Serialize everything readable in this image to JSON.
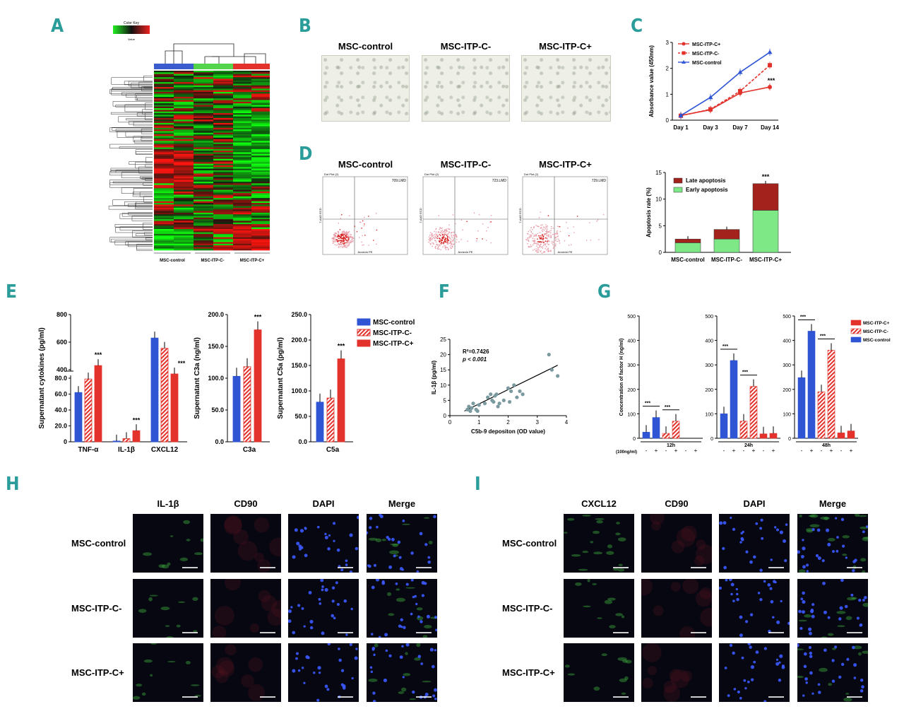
{
  "panels": {
    "A": "A",
    "B": "B",
    "C": "C",
    "D": "D",
    "E": "E",
    "F": "F",
    "G": "G",
    "H": "H",
    "I": "I"
  },
  "heatmap": {
    "color_key_title": "Color Key",
    "color_key_axis": "Value",
    "groups": [
      "MSC-control",
      "MSC-ITP-C-",
      "MSC-ITP-C+"
    ],
    "group_colors": [
      "#3b5ccc",
      "#54d44a",
      "#e2322b"
    ]
  },
  "microscopy": {
    "titles": [
      "MSC-control",
      "MSC-ITP-C-",
      "MSC-ITP-C+"
    ]
  },
  "flow": {
    "titles": [
      "MSC-control",
      "MSC-ITP-C-",
      "MSC-ITP-C+"
    ],
    "plot_header": "Dot Plot (2)",
    "gate_labels": [
      "709.LMD",
      "723.LMD",
      "729.LMD"
    ],
    "x_axis": "Annexin PE",
    "y_axis": "7-AAD ECD"
  },
  "chart_data": [
    {
      "id": "C",
      "type": "line",
      "categories": [
        "Day 1",
        "Day 3",
        "Day 7",
        "Day 14"
      ],
      "ylabel": "Absorbance value (450nm)",
      "ylim": [
        0,
        3
      ],
      "yticks": [
        "0",
        "1",
        "2",
        "3"
      ],
      "series": [
        {
          "name": "MSC-ITP-C+",
          "color": "#e2322b",
          "values": [
            0.18,
            0.4,
            1.05,
            1.28
          ],
          "style": "solid",
          "marker": "circle"
        },
        {
          "name": "MSC-ITP-C-",
          "color": "#e2322b",
          "values": [
            0.17,
            0.42,
            1.12,
            2.12
          ],
          "style": "dashed",
          "marker": "square"
        },
        {
          "name": "MSC-control",
          "color": "#2f55d4",
          "values": [
            0.18,
            0.88,
            1.85,
            2.62
          ],
          "style": "solid",
          "marker": "triangle"
        }
      ],
      "annotation": "***"
    },
    {
      "id": "D-bar",
      "type": "bar",
      "categories": [
        "MSC-control",
        "MSC-ITP-C-",
        "MSC-ITP-C+"
      ],
      "ylabel": "Apoptosis rate (%)",
      "ylim": [
        0,
        15
      ],
      "yticks": [
        "0",
        "5",
        "10",
        "15"
      ],
      "series": [
        {
          "name": "Early apoptosis",
          "color": "#7ee887",
          "values": [
            1.8,
            2.5,
            7.9
          ]
        },
        {
          "name": "Late apoptosis",
          "color": "#a3221c",
          "values": [
            0.7,
            1.8,
            5.0
          ]
        }
      ],
      "annotation": "***"
    },
    {
      "id": "E1",
      "type": "bar",
      "categories": [
        "TNF-α",
        "IL-1β",
        "CXCL12"
      ],
      "ylabel": "Supernatant cytokines (pg/ml)",
      "yticks": [
        "0",
        "20.0",
        "40.0",
        "60.0",
        "80.0",
        "400",
        "600",
        "800"
      ],
      "series": [
        {
          "name": "MSC-control",
          "values": [
            62,
            1,
            630
          ]
        },
        {
          "name": "MSC-ITP-C-",
          "values": [
            79,
            4,
            555
          ]
        },
        {
          "name": "MSC-ITP-C+",
          "values": [
            430,
            14,
            395
          ]
        }
      ],
      "annotations": [
        "***",
        "***",
        "***"
      ]
    },
    {
      "id": "E2",
      "type": "bar",
      "categories": [
        "C3a"
      ],
      "ylabel": "Supernatant C3a (ng/ml)",
      "ylim": [
        0,
        200
      ],
      "yticks": [
        "0.0",
        "50.0",
        "100.0",
        "150.0",
        "200.0"
      ],
      "series": [
        {
          "name": "MSC-control",
          "values": [
            103
          ]
        },
        {
          "name": "MSC-ITP-C-",
          "values": [
            118
          ]
        },
        {
          "name": "MSC-ITP-C+",
          "values": [
            176
          ]
        }
      ],
      "annotation": "***"
    },
    {
      "id": "E3",
      "type": "bar",
      "categories": [
        "C5a"
      ],
      "ylabel": "Supernatant C5a (pg/ml)",
      "ylim": [
        0,
        250
      ],
      "yticks": [
        "0.0",
        "50.0",
        "100.0",
        "150.0",
        "200.0",
        "250.0"
      ],
      "series": [
        {
          "name": "MSC-control",
          "values": [
            78
          ]
        },
        {
          "name": "MSC-ITP-C-",
          "values": [
            86
          ]
        },
        {
          "name": "MSC-ITP-C+",
          "values": [
            163
          ]
        }
      ],
      "annotation": "***",
      "legend": [
        "MSC-control",
        "MSC-ITP-C-",
        "MSC-ITP-C+"
      ]
    },
    {
      "id": "F",
      "type": "scatter",
      "xlabel": "C5b-9 depositon (OD value)",
      "ylabel": "IL-1β (pg/ml)",
      "xlim": [
        0,
        4
      ],
      "ylim": [
        0,
        25
      ],
      "xticks": [
        "0",
        "1",
        "2",
        "3",
        "4"
      ],
      "yticks": [
        "0",
        "5",
        "10",
        "15",
        "20",
        "25"
      ],
      "annotation_r2": "R²=0.7426",
      "annotation_p": "p < 0.001",
      "points": [
        [
          0.6,
          2
        ],
        [
          0.65,
          3
        ],
        [
          0.7,
          1.5
        ],
        [
          0.75,
          2.5
        ],
        [
          0.8,
          4
        ],
        [
          0.9,
          2
        ],
        [
          0.95,
          1.5
        ],
        [
          1.0,
          3.5
        ],
        [
          1.3,
          6
        ],
        [
          1.4,
          7
        ],
        [
          1.45,
          5
        ],
        [
          1.5,
          4.5
        ],
        [
          1.55,
          6.5
        ],
        [
          1.6,
          7
        ],
        [
          1.65,
          3
        ],
        [
          1.7,
          4
        ],
        [
          1.85,
          5
        ],
        [
          2.0,
          9
        ],
        [
          2.1,
          8
        ],
        [
          2.2,
          10
        ],
        [
          2.3,
          6
        ],
        [
          2.4,
          8
        ],
        [
          2.5,
          7
        ],
        [
          3.4,
          20
        ],
        [
          3.5,
          15
        ],
        [
          3.7,
          13
        ],
        [
          1.2,
          4
        ],
        [
          2.05,
          4.5
        ]
      ],
      "fit": [
        [
          0.5,
          1.5
        ],
        [
          3.7,
          16.5
        ]
      ]
    },
    {
      "id": "G",
      "type": "bar",
      "ylabel": "Concentration of factor H (ng/ml)",
      "timepoints": [
        "12h",
        "24h",
        "48h"
      ],
      "ylim": [
        0,
        500
      ],
      "yticks": [
        "0",
        "100",
        "200",
        "300",
        "400",
        "500"
      ],
      "xlabel": "TNF-α (100ng/ml)",
      "treat_labels": [
        "-",
        "+",
        "-",
        "+",
        "-",
        "+"
      ],
      "groups": [
        {
          "values": [
            25,
            85,
            20,
            70,
            0,
            0
          ]
        },
        {
          "values": [
            100,
            318,
            70,
            212,
            18,
            20
          ]
        },
        {
          "values": [
            248,
            438,
            190,
            360,
            22,
            30
          ]
        }
      ],
      "bar_series": [
        "MSC-control",
        "MSC-control",
        "MSC-ITP-C-",
        "MSC-ITP-C-",
        "MSC-ITP-C+",
        "MSC-ITP-C+"
      ],
      "legend": [
        "MSC-ITP-C+",
        "MSC-ITP-C-",
        "MSC-control"
      ],
      "annotation": "***"
    }
  ],
  "immuno": {
    "H": {
      "cols": [
        "IL-1β",
        "CD90",
        "DAPI",
        "Merge"
      ],
      "rows": [
        "MSC-control",
        "MSC-ITP-C-",
        "MSC-ITP-C+"
      ]
    },
    "I": {
      "cols": [
        "CXCL12",
        "CD90",
        "DAPI",
        "Merge"
      ],
      "rows": [
        "MSC-control",
        "MSC-ITP-C-",
        "MSC-ITP-C+"
      ]
    }
  }
}
